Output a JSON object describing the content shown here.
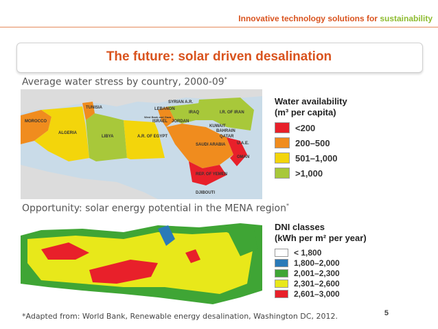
{
  "header": {
    "tagline_main": "Innovative technology solutions for ",
    "tagline_accent": "sustainability"
  },
  "title": "The future: solar driven desalination",
  "section1": {
    "heading": "Average water stress by country, 2000-09",
    "heading_mark": "*",
    "legend": {
      "title_line1": "Water availability",
      "title_line2": "(m³ per capita)",
      "items": [
        {
          "label": "<200",
          "color": "#e8202a"
        },
        {
          "label": "200–500",
          "color": "#f08c1e"
        },
        {
          "label": "501–1,000",
          "color": "#f3d50b"
        },
        {
          "label": ">1,000",
          "color": "#a8c83a"
        }
      ]
    },
    "countries": [
      "TUNISIA",
      "MOROCCO",
      "ALGERIA",
      "LIBYA",
      "A.R. OF EGYPT",
      "LEBANON",
      "SYRIAN A.R.",
      "IRAQ",
      "I.R. OF IRAN",
      "West Bank and Gaza",
      "ISRAEL",
      "JORDAN",
      "KUWAIT",
      "BAHRAIN",
      "QATAR",
      "U.A.E.",
      "SAUDI ARABIA",
      "OMAN",
      "REP. OF YEMEN",
      "DJIBOUTI"
    ]
  },
  "section2": {
    "heading": "Opportunity: solar energy potential in the MENA region",
    "heading_mark": "*",
    "legend": {
      "title_line1": "DNI classes",
      "title_line2": "(kWh per m² per year)",
      "items": [
        {
          "label": "< 1,800",
          "color": "#ffffff"
        },
        {
          "label": "1,800–2,000",
          "color": "#2a7ab8"
        },
        {
          "label": "2,001–2,300",
          "color": "#3fa535"
        },
        {
          "label": "2,301–2,600",
          "color": "#e8e81a"
        },
        {
          "label": "2,601–3,000",
          "color": "#e8202a"
        }
      ]
    }
  },
  "footnote": "*Adapted from: World Bank, Renewable energy desalination, Washington DC, 2012.",
  "page_number": "5"
}
